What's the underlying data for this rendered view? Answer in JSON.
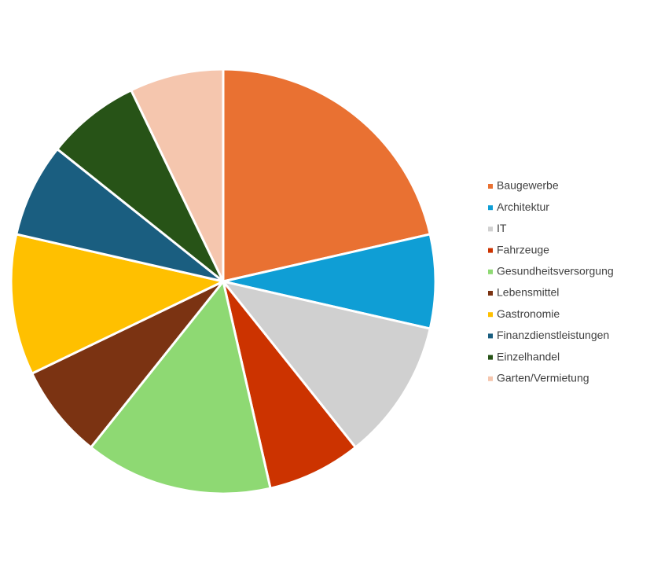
{
  "chart_data": {
    "type": "pie",
    "categories": [
      "Baugewerbe",
      "Architektur",
      "IT",
      "Fahrzeuge",
      "Gesundheitsversorgung",
      "Lebensmittel",
      "Gastronomie",
      "Finanzdienstleistungen",
      "Einzelhandel",
      "Garten/Vermietung"
    ],
    "values": [
      6,
      2,
      3,
      2,
      4,
      2,
      3,
      2,
      2,
      2
    ],
    "colors": [
      "#E97132",
      "#0F9ED5",
      "#D0D0D0",
      "#CC3300",
      "#8ED973",
      "#7B3312",
      "#FFC000",
      "#1A5E80",
      "#275317",
      "#F5C6AE"
    ],
    "legend": "right"
  }
}
